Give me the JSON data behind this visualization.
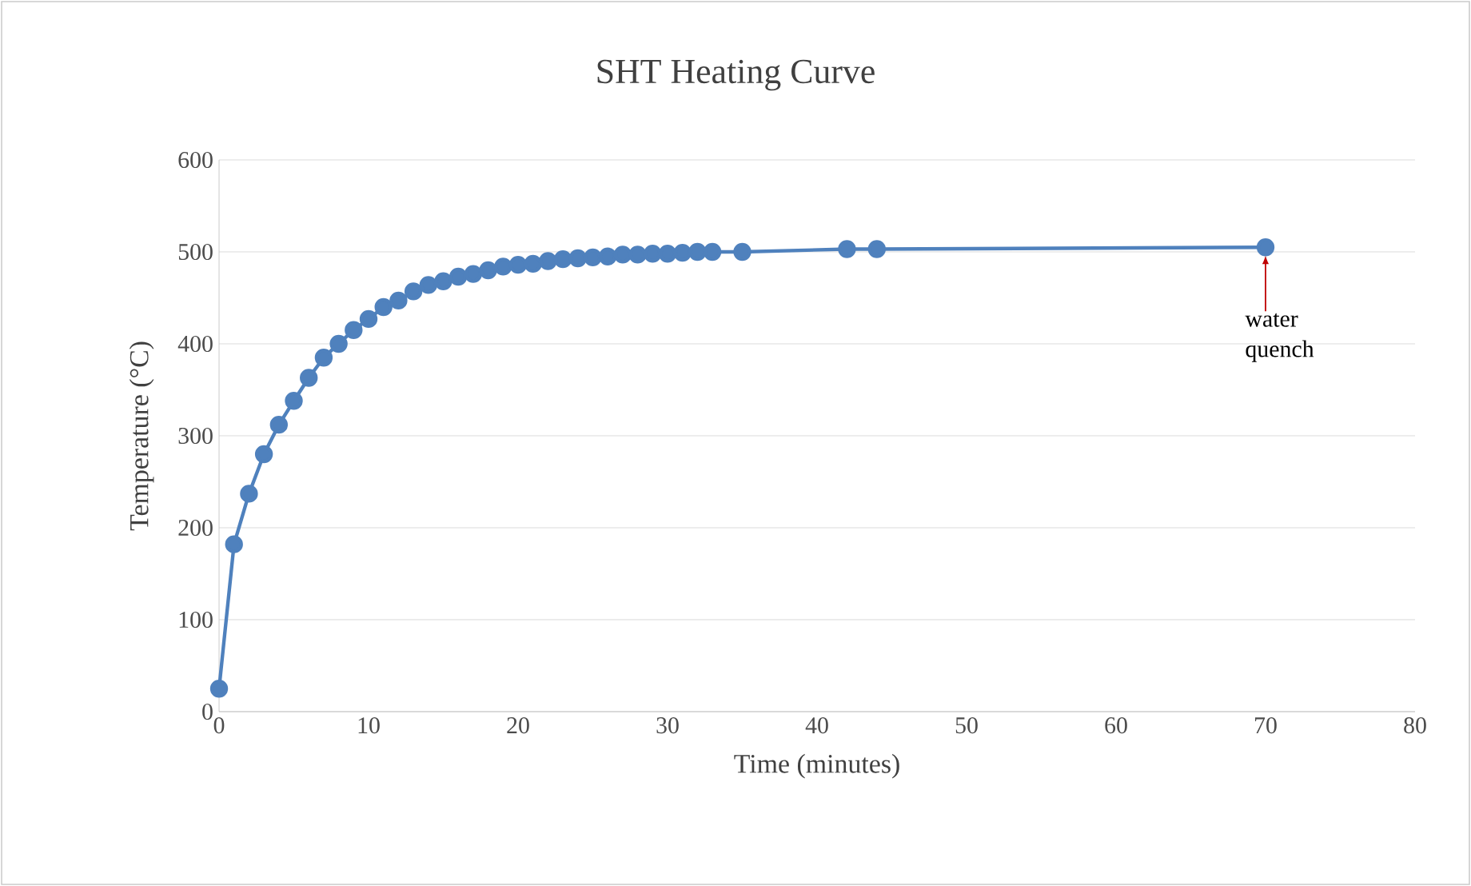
{
  "chart_data": {
    "type": "line",
    "title": "SHT Heating Curve",
    "xlabel": "Time (minutes)",
    "ylabel": "Temperature (°C)",
    "xlim": [
      0,
      80
    ],
    "xticks": [
      0,
      10,
      20,
      30,
      40,
      50,
      60,
      70,
      80
    ],
    "ylim": [
      0,
      600
    ],
    "yticks": [
      0,
      100,
      200,
      300,
      400,
      500,
      600
    ],
    "grid": "y",
    "marker": "circle",
    "line_style": "solid",
    "series": [
      {
        "color": "#4f81bd",
        "x": [
          0,
          1,
          2,
          3,
          4,
          5,
          6,
          7,
          8,
          9,
          10,
          11,
          12,
          13,
          14,
          15,
          16,
          17,
          18,
          19,
          20,
          21,
          22,
          23,
          24,
          25,
          26,
          27,
          28,
          29,
          30,
          31,
          32,
          33,
          35,
          42,
          44,
          70
        ],
        "values": [
          25,
          182,
          237,
          280,
          312,
          338,
          363,
          385,
          400,
          415,
          427,
          440,
          447,
          457,
          464,
          468,
          473,
          476,
          480,
          484,
          486,
          487,
          490,
          492,
          493,
          494,
          495,
          497,
          497,
          498,
          498,
          499,
          500,
          500,
          500,
          503,
          503,
          505
        ]
      }
    ],
    "annotations": [
      {
        "text": "water quench",
        "x": 70,
        "y": 505
      }
    ]
  }
}
